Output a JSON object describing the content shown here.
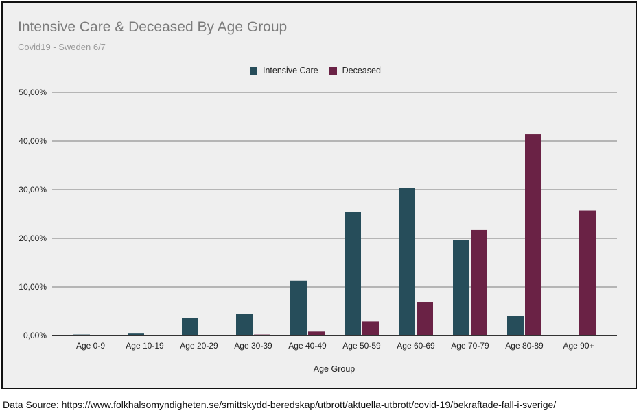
{
  "chart_data": {
    "type": "bar",
    "title": "Intensive Care & Deceased By Age Group",
    "subtitle": "Covid19 - Sweden 6/7",
    "xlabel": "Age Group",
    "ylabel": "",
    "ylim": [
      0,
      50
    ],
    "yticks": [
      "0,00%",
      "10,00%",
      "20,00%",
      "30,00%",
      "40,00%",
      "50,00%"
    ],
    "ytick_values": [
      0,
      10,
      20,
      30,
      40,
      50
    ],
    "grid": true,
    "legend_position": "top-center",
    "categories": [
      "Age 0-9",
      "Age 10-19",
      "Age 20-29",
      "Age 30-39",
      "Age 40-49",
      "Age 50-59",
      "Age 60-69",
      "Age 70-79",
      "Age 80-89",
      "Age 90+"
    ],
    "series": [
      {
        "name": "Intensive Care",
        "color": "#264d5a",
        "values": [
          0.2,
          0.4,
          3.6,
          4.4,
          11.3,
          25.4,
          30.3,
          19.6,
          4.0,
          0.0
        ]
      },
      {
        "name": "Deceased",
        "color": "#6a2245",
        "values": [
          0.0,
          0.0,
          0.1,
          0.2,
          0.8,
          2.9,
          6.9,
          21.7,
          41.4,
          25.7
        ]
      }
    ]
  },
  "footer": {
    "source": "Data Source: https://www.folkhalsomyndigheten.se/smittskydd-beredskap/utbrott/aktuella-utbrott/covid-19/bekraftade-fall-i-sverige/"
  }
}
